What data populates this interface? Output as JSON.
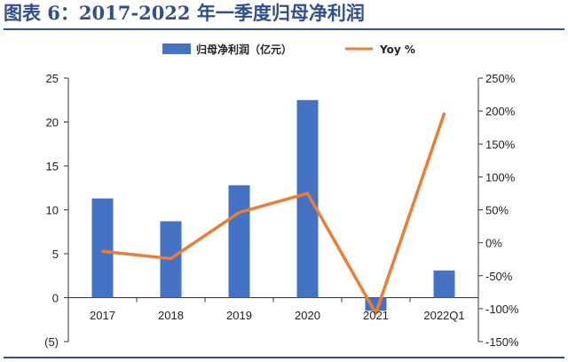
{
  "figure": {
    "caption": "图表 6：2017-2022 年一季度归母净利润"
  },
  "colors": {
    "bar": "#4472c4",
    "line": "#ed7d31",
    "caption": "#2f4f8f"
  },
  "chart_data": {
    "type": "bar",
    "title": "",
    "categories": [
      "2017",
      "2018",
      "2019",
      "2020",
      "2021",
      "2022Q1"
    ],
    "series": [
      {
        "name": "归母净利润（亿元）",
        "type": "bar",
        "axis": "left",
        "values": [
          11.3,
          8.7,
          12.8,
          22.5,
          -1.5,
          3.1
        ]
      },
      {
        "name": "Yoy %",
        "type": "line",
        "axis": "right",
        "values": [
          -13,
          -24,
          46,
          75,
          -107,
          196
        ]
      }
    ],
    "y_left": {
      "min": -5,
      "max": 25,
      "step": 5,
      "tick_labels": [
        "(5)",
        "0",
        "5",
        "10",
        "15",
        "20",
        "25"
      ]
    },
    "y_right": {
      "min": -150,
      "max": 250,
      "step": 50,
      "tick_labels": [
        "-150%",
        "-100%",
        "-50%",
        "0%",
        "50%",
        "100%",
        "150%",
        "200%",
        "250%"
      ]
    },
    "legend": {
      "position": "top-center"
    },
    "grid": false
  }
}
